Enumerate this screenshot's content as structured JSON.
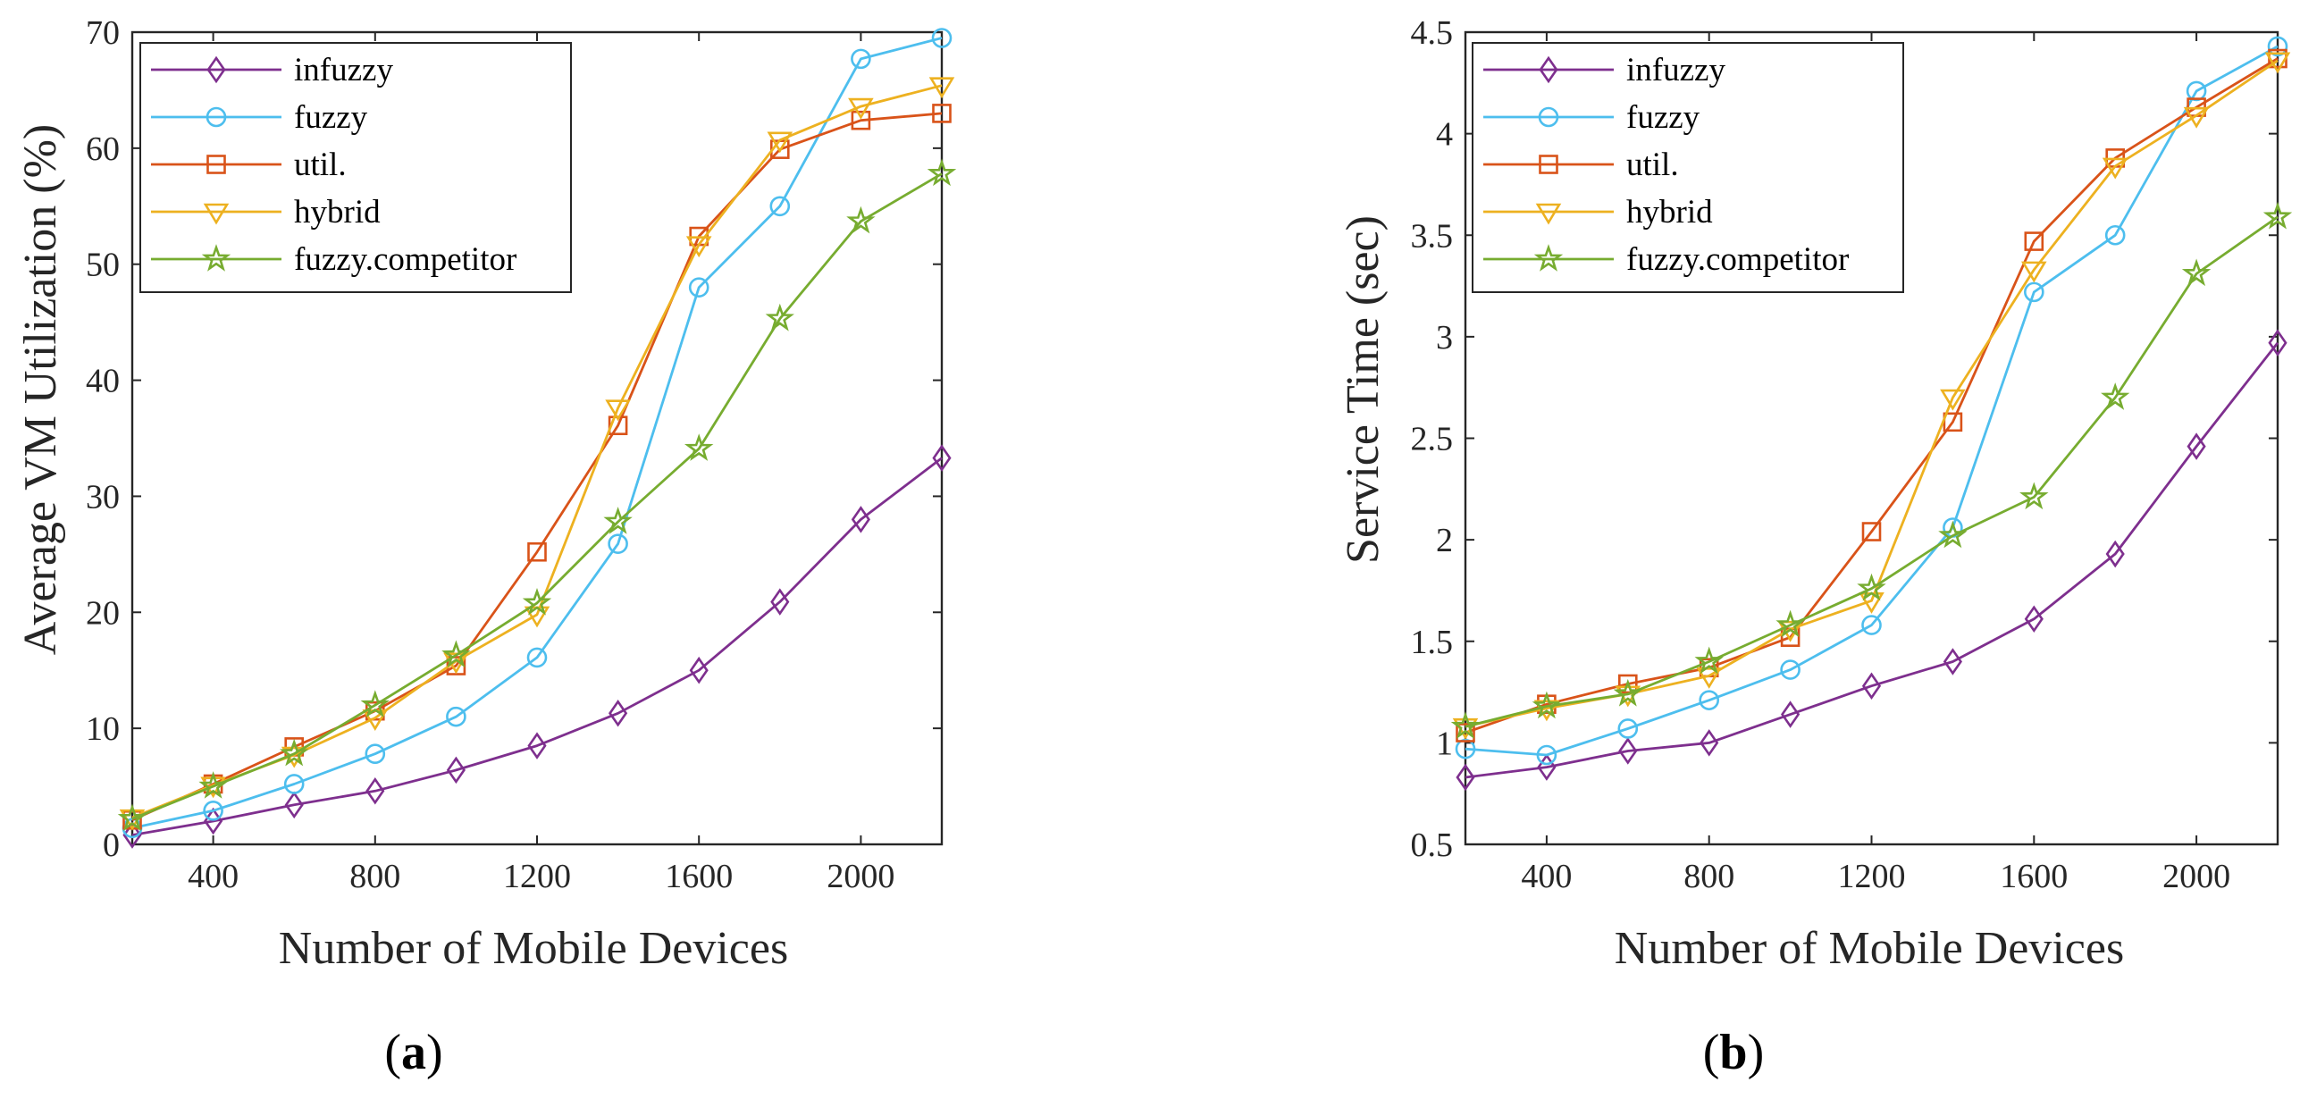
{
  "chart_data": [
    {
      "type": "line",
      "panel_label": {
        "open": "(",
        "letter": "a",
        "close": ")"
      },
      "xlabel": "Number of Mobile Devices",
      "ylabel": "Average VM Utilization (%)",
      "xlim": [
        200,
        2200
      ],
      "ylim": [
        0,
        70
      ],
      "x_ticks": [
        400,
        800,
        1200,
        1600,
        2000
      ],
      "y_ticks": [
        0,
        10,
        20,
        30,
        40,
        50,
        60,
        70
      ],
      "legend_position": "top-left",
      "x": [
        200,
        400,
        600,
        800,
        1000,
        1200,
        1400,
        1600,
        1800,
        2000,
        2200
      ],
      "series": [
        {
          "name": "infuzzy",
          "color": "#7E2F8E",
          "marker": "diamond",
          "values": [
            0.8,
            2.0,
            3.4,
            4.6,
            6.4,
            8.5,
            11.3,
            15.0,
            20.9,
            28.0,
            33.3
          ]
        },
        {
          "name": "fuzzy",
          "color": "#4DBEEE",
          "marker": "circle",
          "values": [
            1.4,
            2.9,
            5.2,
            7.8,
            11.0,
            16.1,
            25.9,
            48.0,
            55.0,
            67.7,
            69.5
          ]
        },
        {
          "name": "util.",
          "color": "#D95319",
          "marker": "square",
          "values": [
            2.1,
            5.2,
            8.4,
            11.5,
            15.4,
            25.2,
            36.1,
            52.4,
            59.9,
            62.4,
            63.0
          ]
        },
        {
          "name": "hybrid",
          "color": "#EDB120",
          "marker": "triangle-down",
          "values": [
            2.3,
            5.1,
            7.7,
            10.9,
            15.8,
            19.8,
            37.6,
            51.7,
            60.7,
            63.6,
            65.4
          ]
        },
        {
          "name": "fuzzy.competitor",
          "color": "#77AC30",
          "marker": "star",
          "values": [
            2.2,
            5.0,
            7.8,
            12.0,
            16.3,
            20.8,
            27.8,
            34.1,
            45.3,
            53.7,
            57.8
          ]
        }
      ]
    },
    {
      "type": "line",
      "panel_label": {
        "open": "(",
        "letter": "b",
        "close": ")"
      },
      "xlabel": "Number of Mobile Devices",
      "ylabel": "Service Time (sec)",
      "xlim": [
        200,
        2200
      ],
      "ylim": [
        0.5,
        4.5
      ],
      "x_ticks": [
        400,
        800,
        1200,
        1600,
        2000
      ],
      "y_ticks": [
        0.5,
        1,
        1.5,
        2,
        2.5,
        3,
        3.5,
        4,
        4.5
      ],
      "legend_position": "top-left",
      "x": [
        200,
        400,
        600,
        800,
        1000,
        1200,
        1400,
        1600,
        1800,
        2000,
        2200
      ],
      "series": [
        {
          "name": "infuzzy",
          "color": "#7E2F8E",
          "marker": "diamond",
          "values": [
            0.83,
            0.88,
            0.96,
            1.0,
            1.14,
            1.28,
            1.4,
            1.61,
            1.93,
            2.46,
            2.97
          ]
        },
        {
          "name": "fuzzy",
          "color": "#4DBEEE",
          "marker": "circle",
          "values": [
            0.97,
            0.94,
            1.07,
            1.21,
            1.36,
            1.58,
            2.06,
            3.22,
            3.5,
            4.21,
            4.43
          ]
        },
        {
          "name": "util.",
          "color": "#D95319",
          "marker": "square",
          "values": [
            1.05,
            1.19,
            1.29,
            1.37,
            1.52,
            2.04,
            2.58,
            3.47,
            3.88,
            4.13,
            4.37
          ]
        },
        {
          "name": "hybrid",
          "color": "#EDB120",
          "marker": "triangle-down",
          "values": [
            1.08,
            1.17,
            1.24,
            1.33,
            1.56,
            1.7,
            2.7,
            3.33,
            3.84,
            4.09,
            4.36
          ]
        },
        {
          "name": "fuzzy.competitor",
          "color": "#77AC30",
          "marker": "star",
          "values": [
            1.08,
            1.18,
            1.24,
            1.4,
            1.58,
            1.76,
            2.02,
            2.21,
            2.7,
            3.31,
            3.59
          ]
        }
      ]
    }
  ]
}
